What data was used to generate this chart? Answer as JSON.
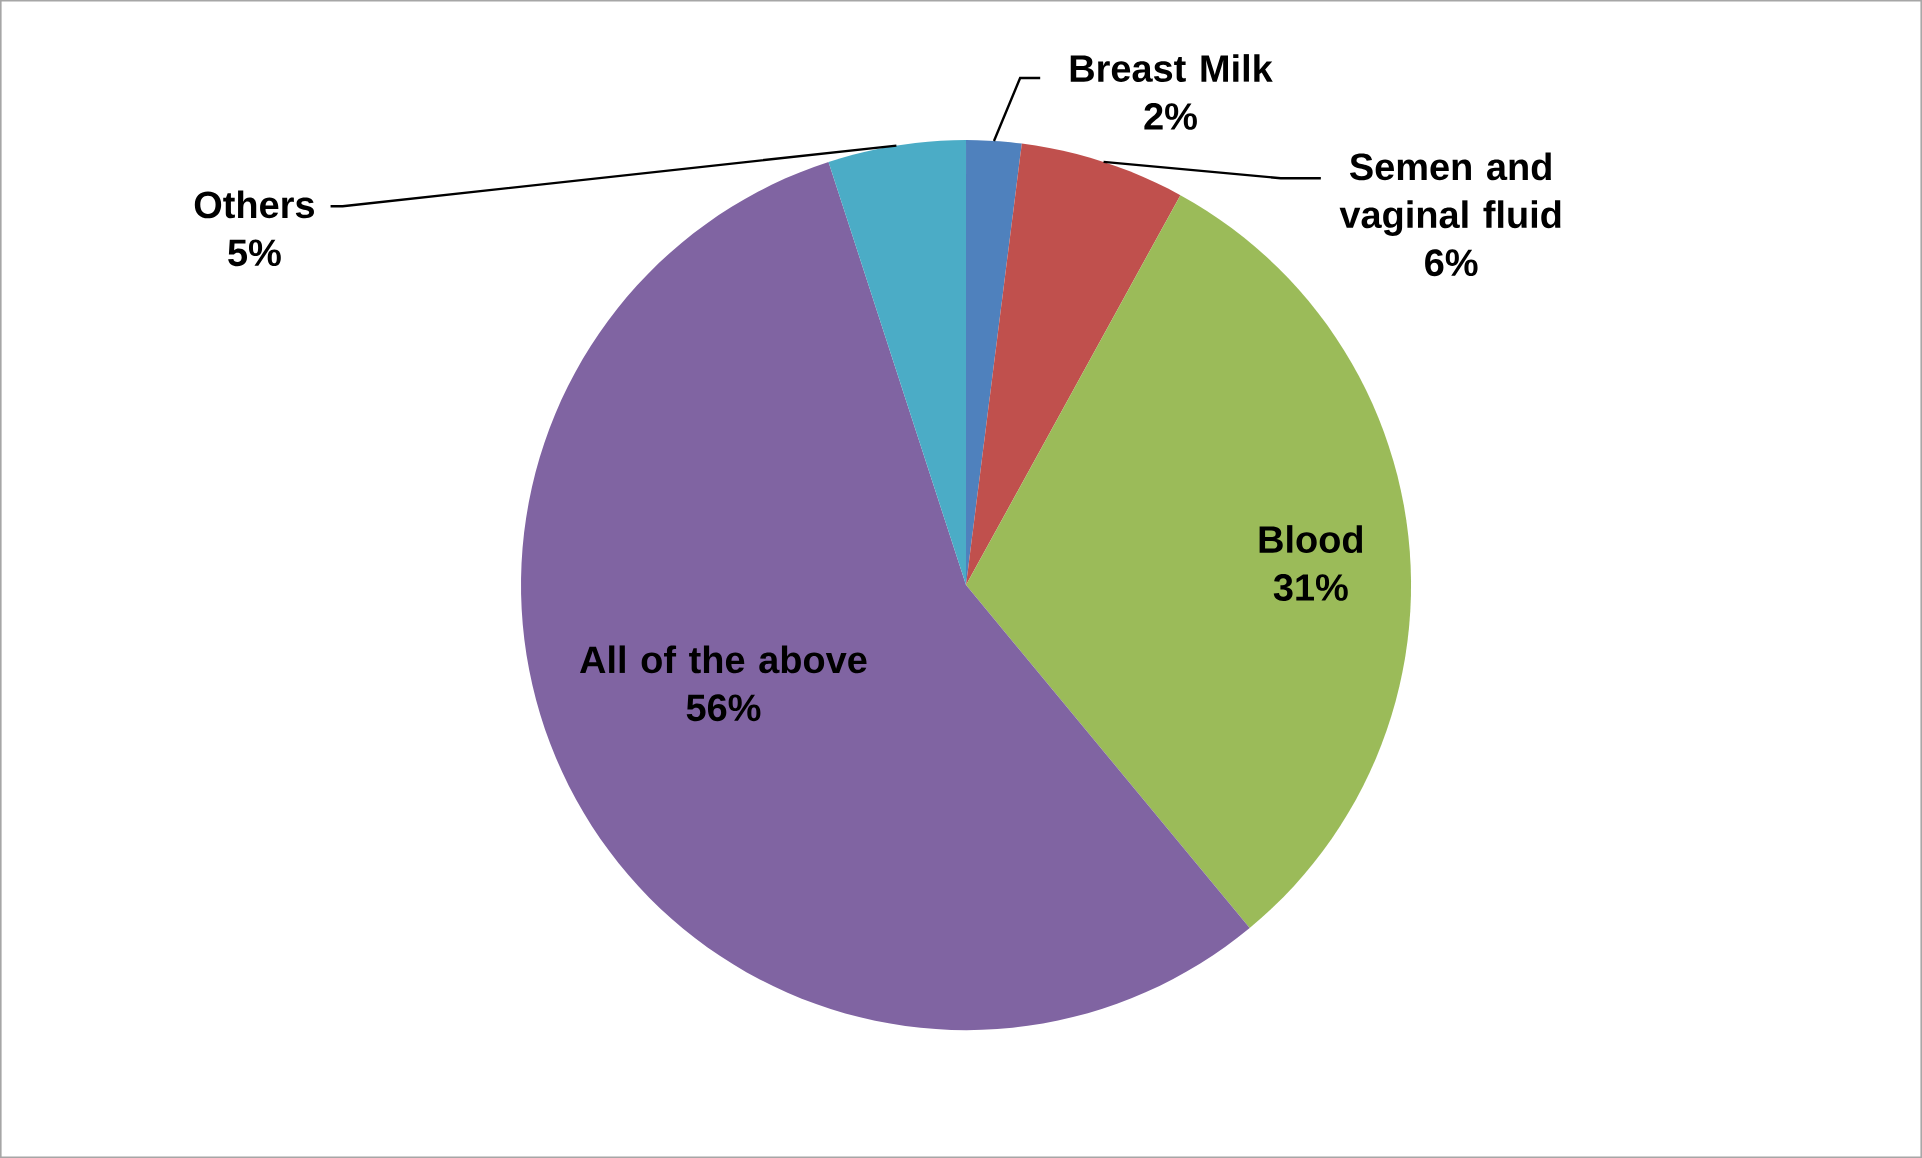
{
  "chart_data": {
    "type": "pie",
    "categories": [
      "Breast Milk",
      "Semen and vaginal fluid",
      "Blood",
      "All of the above",
      "Others"
    ],
    "values": [
      2,
      6,
      31,
      56,
      5
    ],
    "colors": [
      "#4f81bd",
      "#c0504d",
      "#9bbb59",
      "#8064a2",
      "#4bacc6"
    ],
    "value_labels": [
      "2%",
      "6%",
      "31%",
      "56%",
      "5%"
    ]
  }
}
